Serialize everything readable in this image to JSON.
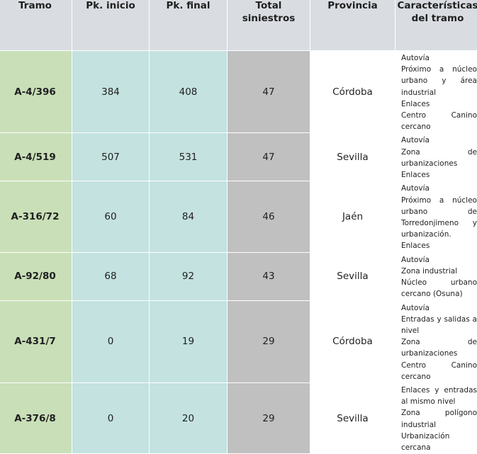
{
  "headers": {
    "tramo": "Tramo",
    "pk_inicio": "Pk. inicio",
    "pk_final": "Pk. final",
    "total_1": "Total",
    "total_2": "siniestros",
    "provincia": "Provincia",
    "car_1": "Características",
    "car_2": "del tramo"
  },
  "rows": [
    {
      "tramo": "A-4/396",
      "pk_inicio": "384",
      "pk_final": "408",
      "total": "47",
      "provincia": "Córdoba",
      "car": [
        "Autovía",
        "Próximo a núcleo urbano y área industrial",
        "Enlaces",
        "Centro Canino cercano"
      ]
    },
    {
      "tramo": "A-4/519",
      "pk_inicio": "507",
      "pk_final": "531",
      "total": "47",
      "provincia": "Sevilla",
      "car": [
        "Autovía",
        "Zona de urbanizaciones",
        "Enlaces"
      ]
    },
    {
      "tramo": "A-316/72",
      "pk_inicio": "60",
      "pk_final": "84",
      "total": "46",
      "provincia": "Jaén",
      "car": [
        "Autovía",
        "Próximo a núcleo urbano de Torredonjimeno y urbanización.",
        "Enlaces"
      ]
    },
    {
      "tramo": "A-92/80",
      "pk_inicio": "68",
      "pk_final": "92",
      "total": "43",
      "provincia": "Sevilla",
      "car": [
        "Autovía",
        "Zona industrial",
        "Núcleo urbano cercano (Osuna)"
      ]
    },
    {
      "tramo": "A-431/7",
      "pk_inicio": "0",
      "pk_final": "19",
      "total": "29",
      "provincia": "Córdoba",
      "car": [
        "Autovía",
        "Entradas y salidas a nivel",
        "Zona de urbanizaciones",
        "Centro Canino cercano"
      ]
    },
    {
      "tramo": "A-376/8",
      "pk_inicio": "0",
      "pk_final": "20",
      "total": "29",
      "provincia": "Sevilla",
      "car": [
        "Enlaces y entradas al mismo nivel",
        "Zona polígono industrial",
        "Urbanización cercana"
      ]
    }
  ]
}
